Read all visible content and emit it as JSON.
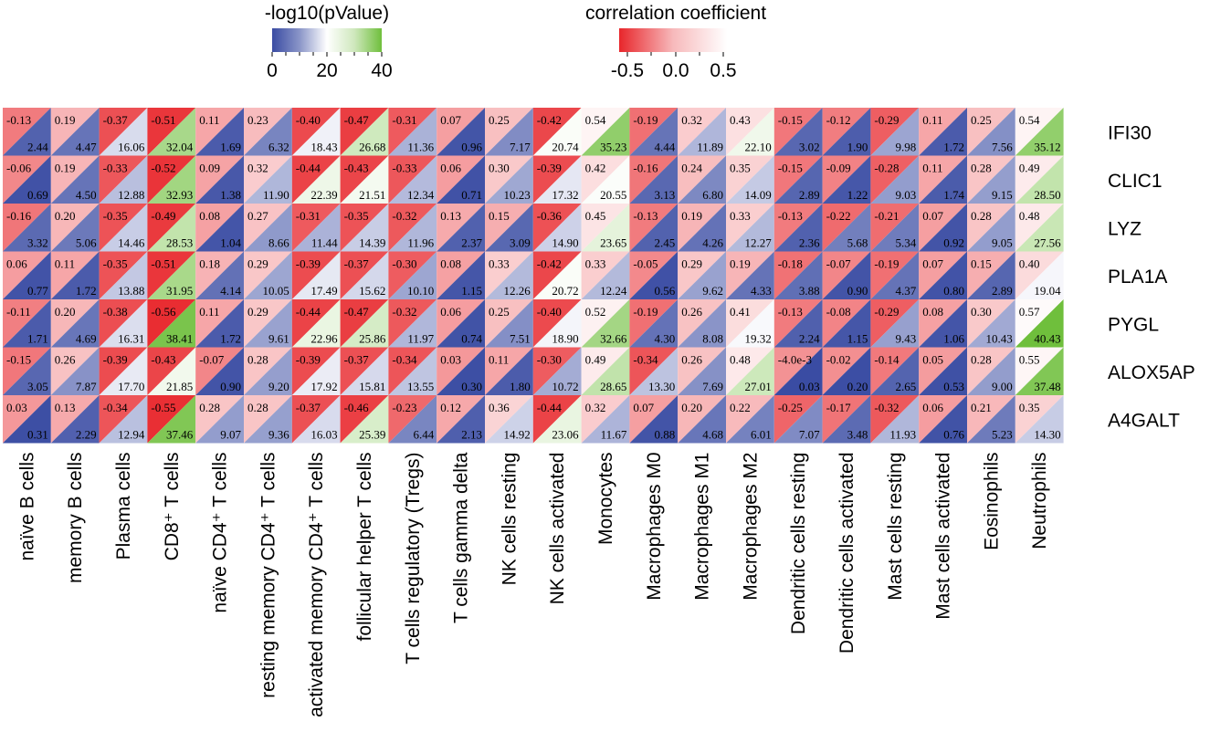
{
  "chart_data": {
    "type": "heatmap",
    "title": "",
    "legend_p": {
      "title": "-log10(pValue)",
      "ticks": [
        "0",
        "20",
        "40"
      ],
      "range": [
        0,
        40
      ],
      "colors": [
        "#3a4ca3",
        "#ffffff",
        "#6fbf3c"
      ]
    },
    "legend_r": {
      "title": "correlation coefficient",
      "ticks": [
        "-0.5",
        "0.0",
        "0.5"
      ],
      "range": [
        -0.6,
        0.6
      ],
      "colors": [
        "#e8262b",
        "#ffffff"
      ]
    },
    "genes": [
      "IFI30",
      "CLIC1",
      "LYZ",
      "PLA1A",
      "PYGL",
      "ALOX5AP",
      "A4GALT"
    ],
    "cells": [
      "naïve B cells",
      "memory B cells",
      "Plasma cells",
      "CD8⁺ T cells",
      "naïve CD4⁺ T cells",
      "resting memory CD4⁺ T cells",
      "activated memory CD4⁺ T cells",
      "follicular helper T cells",
      "T cells regulatory (Tregs)",
      "T cells gamma delta",
      "NK cells resting",
      "NK cells activated",
      "Monocytes",
      "Macrophages M0",
      "Macrophages M1",
      "Macrophages M2",
      "Dendritic cells resting",
      "Dendritic cells activated",
      "Mast cells resting",
      "Mast cells activated",
      "Eosinophils",
      "Neutrophils"
    ],
    "r": [
      [
        "-0.13",
        "0.19",
        "-0.37",
        "-0.51",
        "0.11",
        "0.23",
        "-0.40",
        "-0.47",
        "-0.31",
        "0.07",
        "0.25",
        "-0.42",
        "0.54",
        "-0.19",
        "0.32",
        "0.43",
        "-0.15",
        "-0.12",
        "-0.29",
        "0.11",
        "0.25",
        "0.54"
      ],
      [
        "-0.06",
        "0.19",
        "-0.33",
        "-0.52",
        "0.09",
        "0.32",
        "-0.44",
        "-0.43",
        "-0.33",
        "0.06",
        "0.30",
        "-0.39",
        "0.42",
        "-0.16",
        "0.24",
        "0.35",
        "-0.15",
        "-0.09",
        "-0.28",
        "0.11",
        "0.28",
        "0.49"
      ],
      [
        "-0.16",
        "0.20",
        "-0.35",
        "-0.49",
        "0.08",
        "0.27",
        "-0.31",
        "-0.35",
        "-0.32",
        "0.13",
        "0.15",
        "-0.36",
        "0.45",
        "-0.13",
        "0.19",
        "0.33",
        "-0.13",
        "-0.22",
        "-0.21",
        "0.07",
        "0.28",
        "0.48"
      ],
      [
        "0.06",
        "0.11",
        "-0.35",
        "-0.51",
        "0.18",
        "0.29",
        "-0.39",
        "-0.37",
        "-0.30",
        "0.08",
        "0.33",
        "-0.42",
        "0.33",
        "-0.05",
        "0.29",
        "0.19",
        "-0.18",
        "-0.07",
        "-0.19",
        "0.07",
        "0.15",
        "0.40"
      ],
      [
        "-0.11",
        "0.20",
        "-0.38",
        "-0.56",
        "0.11",
        "0.29",
        "-0.44",
        "-0.47",
        "-0.32",
        "0.06",
        "0.25",
        "-0.40",
        "0.52",
        "-0.19",
        "0.26",
        "0.41",
        "-0.13",
        "-0.08",
        "-0.29",
        "0.08",
        "0.30",
        "0.57"
      ],
      [
        "-0.15",
        "0.26",
        "-0.39",
        "-0.43",
        "-0.07",
        "0.28",
        "-0.39",
        "-0.37",
        "-0.34",
        "0.03",
        "0.11",
        "-0.30",
        "0.49",
        "-0.34",
        "0.26",
        "0.48",
        "-4.0e-3",
        "-0.02",
        "-0.14",
        "0.05",
        "0.28",
        "0.55"
      ],
      [
        "0.03",
        "0.13",
        "-0.34",
        "-0.55",
        "0.28",
        "0.28",
        "-0.37",
        "-0.46",
        "-0.23",
        "0.12",
        "0.36",
        "-0.44",
        "0.32",
        "0.07",
        "0.20",
        "0.22",
        "-0.25",
        "-0.17",
        "-0.32",
        "0.06",
        "0.21",
        "0.35"
      ]
    ],
    "p": [
      [
        "2.44",
        "4.47",
        "16.06",
        "32.04",
        "1.69",
        "6.32",
        "18.43",
        "26.68",
        "11.36",
        "0.96",
        "7.17",
        "20.74",
        "35.23",
        "4.44",
        "11.89",
        "22.10",
        "3.02",
        "1.90",
        "9.98",
        "1.72",
        "7.56",
        "35.12"
      ],
      [
        "0.69",
        "4.50",
        "12.88",
        "32.93",
        "1.38",
        "11.90",
        "22.39",
        "21.51",
        "12.34",
        "0.71",
        "10.23",
        "17.32",
        "20.55",
        "3.13",
        "6.80",
        "14.09",
        "2.89",
        "1.22",
        "9.03",
        "1.74",
        "9.15",
        "28.50"
      ],
      [
        "3.32",
        "5.06",
        "14.46",
        "28.53",
        "1.04",
        "8.66",
        "11.44",
        "14.39",
        "11.96",
        "2.37",
        "3.09",
        "14.90",
        "23.65",
        "2.45",
        "4.26",
        "12.27",
        "2.36",
        "5.68",
        "5.34",
        "0.92",
        "9.05",
        "27.56"
      ],
      [
        "0.77",
        "1.72",
        "13.88",
        "31.95",
        "4.14",
        "10.05",
        "17.49",
        "15.62",
        "10.10",
        "1.15",
        "12.26",
        "20.72",
        "12.24",
        "0.56",
        "9.62",
        "4.33",
        "3.88",
        "0.90",
        "4.37",
        "0.80",
        "2.89",
        "19.04"
      ],
      [
        "1.71",
        "4.69",
        "16.31",
        "38.41",
        "1.72",
        "9.61",
        "22.96",
        "25.86",
        "11.97",
        "0.74",
        "7.51",
        "18.90",
        "32.66",
        "4.30",
        "8.08",
        "19.32",
        "2.24",
        "1.15",
        "9.43",
        "1.06",
        "10.43",
        "40.43"
      ],
      [
        "3.05",
        "7.87",
        "17.70",
        "21.85",
        "0.90",
        "9.20",
        "17.92",
        "15.81",
        "13.55",
        "0.30",
        "1.80",
        "10.72",
        "28.65",
        "13.30",
        "7.69",
        "27.01",
        "0.03",
        "0.20",
        "2.65",
        "0.53",
        "9.00",
        "37.48"
      ],
      [
        "0.31",
        "2.29",
        "12.94",
        "37.46",
        "9.07",
        "9.36",
        "16.03",
        "25.39",
        "6.44",
        "2.13",
        "14.92",
        "23.06",
        "11.67",
        "0.88",
        "4.68",
        "6.01",
        "7.07",
        "3.48",
        "11.93",
        "0.76",
        "5.23",
        "14.30"
      ]
    ]
  }
}
